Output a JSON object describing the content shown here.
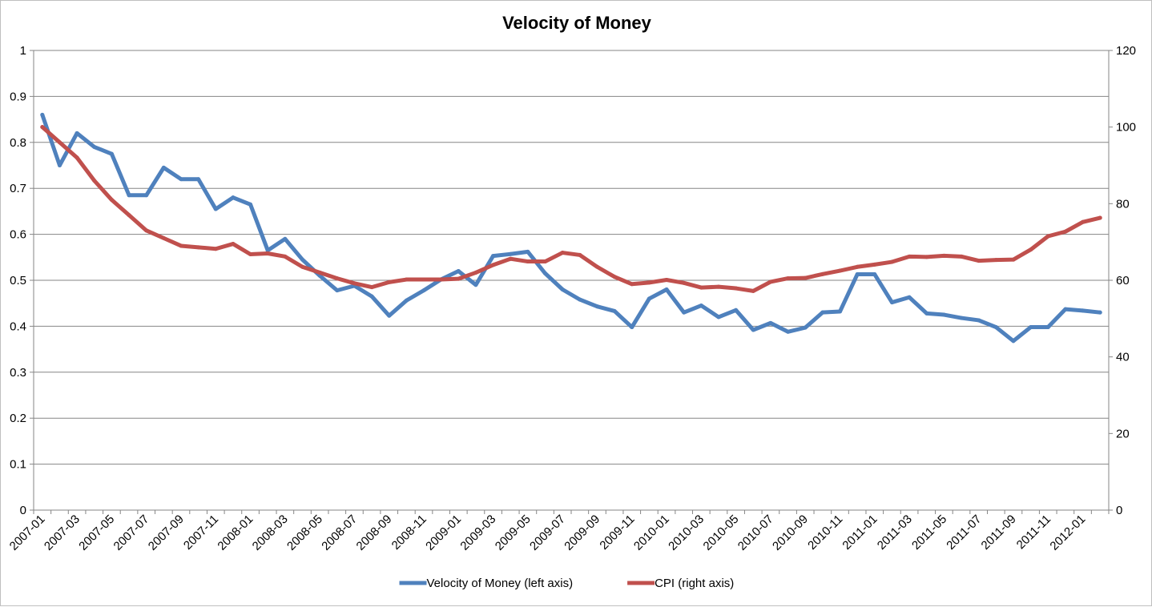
{
  "chart_data": {
    "type": "line",
    "title": "Velocity of Money",
    "xlabel": "",
    "ylabel_left": "",
    "ylabel_right": "",
    "x": [
      "2007-01",
      "2007-02",
      "2007-03",
      "2007-04",
      "2007-05",
      "2007-06",
      "2007-07",
      "2007-08",
      "2007-09",
      "2007-10",
      "2007-11",
      "2007-12",
      "2008-01",
      "2008-02",
      "2008-03",
      "2008-04",
      "2008-05",
      "2008-06",
      "2008-07",
      "2008-08",
      "2008-09",
      "2008-10",
      "2008-11",
      "2008-12",
      "2009-01",
      "2009-02",
      "2009-03",
      "2009-04",
      "2009-05",
      "2009-06",
      "2009-07",
      "2009-08",
      "2009-09",
      "2009-10",
      "2009-11",
      "2009-12",
      "2010-01",
      "2010-02",
      "2010-03",
      "2010-04",
      "2010-05",
      "2010-06",
      "2010-07",
      "2010-08",
      "2010-09",
      "2010-10",
      "2010-11",
      "2010-12",
      "2011-01",
      "2011-02",
      "2011-03",
      "2011-04",
      "2011-05",
      "2011-06",
      "2011-07",
      "2011-08",
      "2011-09",
      "2011-10",
      "2011-11",
      "2011-12",
      "2012-01",
      "2012-02"
    ],
    "x_tick_labels": [
      "2007-01",
      "2007-03",
      "2007-05",
      "2007-07",
      "2007-09",
      "2007-11",
      "2008-01",
      "2008-03",
      "2008-05",
      "2008-07",
      "2008-09",
      "2008-11",
      "2009-01",
      "2009-03",
      "2009-05",
      "2009-07",
      "2009-09",
      "2009-11",
      "2010-01",
      "2010-03",
      "2010-05",
      "2010-07",
      "2010-09",
      "2010-11",
      "2011-01",
      "2011-03",
      "2011-05",
      "2011-07",
      "2011-09",
      "2011-11",
      "2012-01"
    ],
    "y_left_range": [
      0,
      1
    ],
    "y_left_ticks": [
      "0",
      "0.1",
      "0.2",
      "0.3",
      "0.4",
      "0.5",
      "0.6",
      "0.7",
      "0.8",
      "0.9",
      "1"
    ],
    "y_right_range": [
      0,
      120
    ],
    "y_right_ticks": [
      "0",
      "20",
      "40",
      "60",
      "80",
      "100",
      "120"
    ],
    "grid": true,
    "legend_position": "bottom",
    "series": [
      {
        "name": "Velocity of Money (left axis)",
        "axis": "left",
        "color": "#4f81bd",
        "values": [
          0.86,
          0.75,
          0.82,
          0.79,
          0.775,
          0.685,
          0.685,
          0.745,
          0.72,
          0.72,
          0.655,
          0.68,
          0.665,
          0.565,
          0.59,
          0.545,
          0.51,
          0.478,
          0.488,
          0.465,
          0.423,
          0.456,
          0.478,
          0.502,
          0.52,
          0.49,
          0.553,
          0.557,
          0.562,
          0.515,
          0.48,
          0.458,
          0.443,
          0.433,
          0.398,
          0.46,
          0.48,
          0.43,
          0.445,
          0.42,
          0.435,
          0.392,
          0.407,
          0.388,
          0.397,
          0.43,
          0.432,
          0.513,
          0.513,
          0.452,
          0.463,
          0.428,
          0.425,
          0.418,
          0.413,
          0.398,
          0.368,
          0.398,
          0.398,
          0.437,
          0.434,
          0.43
        ]
      },
      {
        "name": "CPI (right axis)",
        "axis": "right",
        "color": "#c0504d",
        "values": [
          100,
          96,
          92,
          86,
          81,
          77,
          73,
          71,
          69,
          68.6,
          68.2,
          69.5,
          66.8,
          67,
          66.2,
          63.5,
          62,
          60.5,
          59.2,
          58.2,
          59.5,
          60.2,
          60.2,
          60.2,
          60.4,
          62,
          64,
          65.6,
          64.9,
          64.9,
          67.2,
          66.6,
          63.5,
          60.9,
          59,
          59.4,
          60.1,
          59.3,
          58.1,
          58.3,
          57.9,
          57.2,
          59.6,
          60.5,
          60.6,
          61.6,
          62.5,
          63.5,
          64.1,
          64.8,
          66.2,
          66.1,
          66.4,
          66.2,
          65.1,
          65.3,
          65.4,
          68,
          71.5,
          72.7,
          75.2,
          76.3
        ]
      }
    ]
  }
}
